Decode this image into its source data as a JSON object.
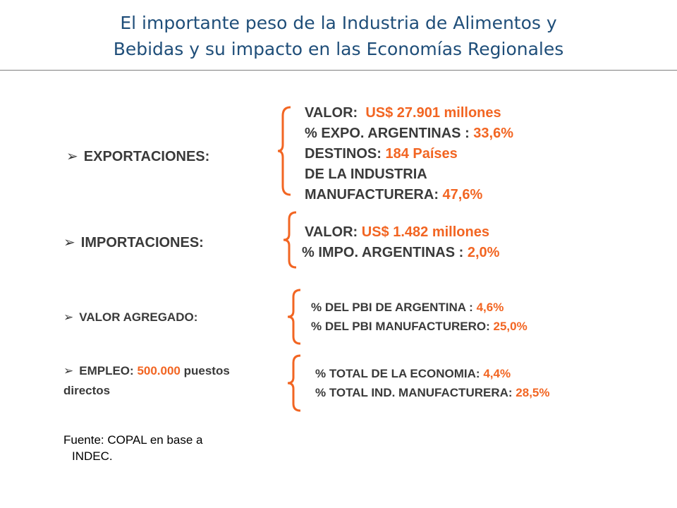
{
  "title": {
    "line1": "El importante peso de la Industria de Alimentos y",
    "line2": "Bebidas y su impacto en las Economías Regionales"
  },
  "colors": {
    "title": "#1f4e79",
    "text": "#3a3a3a",
    "accent": "#f26522"
  },
  "exportaciones": {
    "label": "EXPORTACIONES:",
    "valor_label": "VALOR:",
    "valor_value": "US$ 27.901 millones",
    "expo_label": "% EXPO. ARGENTINAS :",
    "expo_value": "33,6%",
    "destinos_label": "DESTINOS:",
    "destinos_value": "184 Países",
    "industria_line": "DE LA INDUSTRIA",
    "manuf_label": "MANUFACTURERA:",
    "manuf_value": "47,6%"
  },
  "importaciones": {
    "label": "IMPORTACIONES:",
    "valor_label": "VALOR:",
    "valor_value": "US$ 1.482 millones",
    "impo_label": "% IMPO. ARGENTINAS :",
    "impo_value": "2,0%"
  },
  "valor_agregado": {
    "label": "VALOR AGREGADO:",
    "pbi_label": "% DEL PBI DE ARGENTINA :",
    "pbi_value": "4,6%",
    "pbi_manuf_label": "% DEL PBI MANUFACTURERO:",
    "pbi_manuf_value": "25,0%"
  },
  "empleo": {
    "label": "EMPLEO:",
    "value": "500.000",
    "suffix": "puestos",
    "line2": "directos",
    "total_label": "% TOTAL DE LA ECONOMIA:",
    "total_value": "4,4%",
    "ind_label": "% TOTAL IND. MANUFACTURERA:",
    "ind_value": "28,5%"
  },
  "source": {
    "line1": "Fuente: COPAL en base a",
    "line2": "INDEC."
  },
  "icons": {
    "bullet": "arrow-bullet-icon",
    "brace": "curly-brace-icon"
  }
}
